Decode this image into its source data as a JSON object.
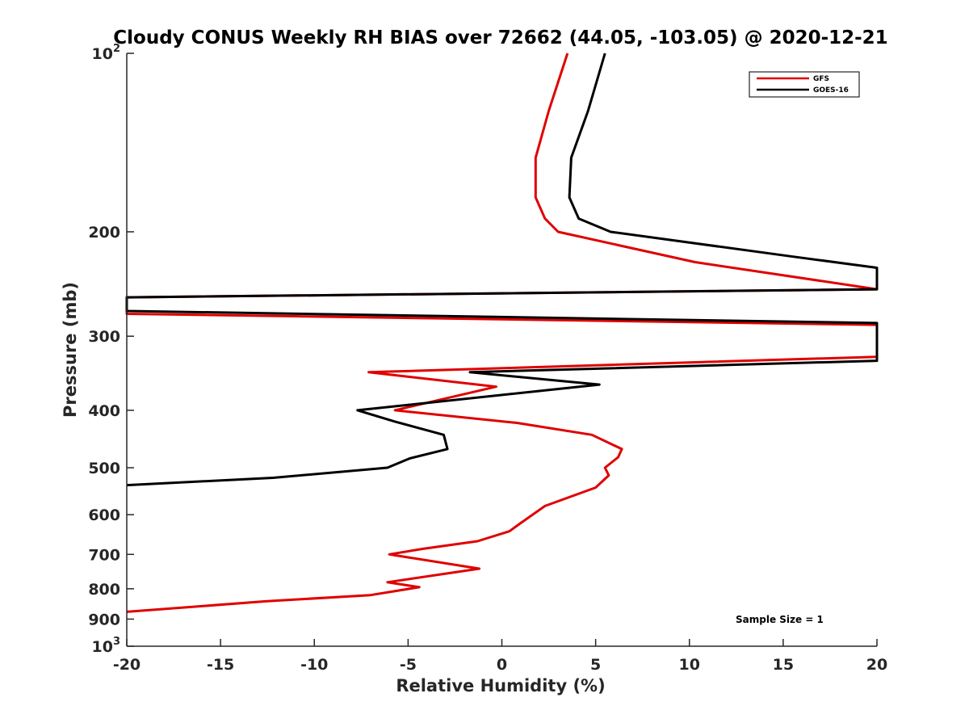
{
  "chart_data": {
    "type": "line",
    "title": "Cloudy CONUS Weekly RH BIAS over 72662 (44.05, -103.05) @ 2020-12-21",
    "xlabel": "Relative Humidity (%)",
    "ylabel": "Pressure (mb)",
    "xlim": [
      -20,
      20
    ],
    "ylim": [
      100,
      1000
    ],
    "y_scale": "log",
    "y_reversed": true,
    "grid": false,
    "legend_position": "top-right",
    "x_ticks": [
      {
        "value": -20,
        "label": "-20"
      },
      {
        "value": -15,
        "label": "-15"
      },
      {
        "value": -10,
        "label": "-10"
      },
      {
        "value": -5,
        "label": "-5"
      },
      {
        "value": 0,
        "label": "0"
      },
      {
        "value": 5,
        "label": "5"
      },
      {
        "value": 10,
        "label": "10"
      },
      {
        "value": 15,
        "label": "15"
      },
      {
        "value": 20,
        "label": "20"
      }
    ],
    "y_ticks": [
      {
        "value": 100,
        "label": "10",
        "sup": "2"
      },
      {
        "value": 200,
        "label": "200",
        "sup": ""
      },
      {
        "value": 300,
        "label": "300",
        "sup": ""
      },
      {
        "value": 400,
        "label": "400",
        "sup": ""
      },
      {
        "value": 500,
        "label": "500",
        "sup": ""
      },
      {
        "value": 600,
        "label": "600",
        "sup": ""
      },
      {
        "value": 700,
        "label": "700",
        "sup": ""
      },
      {
        "value": 800,
        "label": "800",
        "sup": ""
      },
      {
        "value": 900,
        "label": "900",
        "sup": ""
      },
      {
        "value": 1000,
        "label": "10",
        "sup": "3"
      }
    ],
    "series": [
      {
        "name": "GFS",
        "color": "#e00000",
        "points": [
          {
            "x": 3.5,
            "y": 100
          },
          {
            "x": 2.5,
            "y": 125
          },
          {
            "x": 1.8,
            "y": 150
          },
          {
            "x": 1.8,
            "y": 175
          },
          {
            "x": 2.3,
            "y": 190
          },
          {
            "x": 3.0,
            "y": 200
          },
          {
            "x": 10.3,
            "y": 225
          },
          {
            "x": 20.0,
            "y": 250
          },
          {
            "x": -20.0,
            "y": 258
          },
          {
            "x": -20.0,
            "y": 275
          },
          {
            "x": 20.0,
            "y": 287
          },
          {
            "x": 20.0,
            "y": 325
          },
          {
            "x": -7.1,
            "y": 345
          },
          {
            "x": -0.3,
            "y": 365
          },
          {
            "x": -5.7,
            "y": 400
          },
          {
            "x": 0.8,
            "y": 420
          },
          {
            "x": 4.8,
            "y": 440
          },
          {
            "x": 6.4,
            "y": 465
          },
          {
            "x": 6.2,
            "y": 480
          },
          {
            "x": 5.5,
            "y": 500
          },
          {
            "x": 5.7,
            "y": 515
          },
          {
            "x": 5.0,
            "y": 540
          },
          {
            "x": 2.3,
            "y": 580
          },
          {
            "x": 1.0,
            "y": 620
          },
          {
            "x": 0.4,
            "y": 640
          },
          {
            "x": -1.3,
            "y": 665
          },
          {
            "x": -4.2,
            "y": 685
          },
          {
            "x": -6.0,
            "y": 700
          },
          {
            "x": -1.2,
            "y": 740
          },
          {
            "x": -6.1,
            "y": 780
          },
          {
            "x": -4.4,
            "y": 795
          },
          {
            "x": -7.0,
            "y": 820
          },
          {
            "x": -12.6,
            "y": 840
          },
          {
            "x": -20.0,
            "y": 875
          }
        ]
      },
      {
        "name": "GOES-16",
        "color": "#000000",
        "points": [
          {
            "x": 5.5,
            "y": 100
          },
          {
            "x": 4.6,
            "y": 125
          },
          {
            "x": 3.7,
            "y": 150
          },
          {
            "x": 3.6,
            "y": 175
          },
          {
            "x": 4.1,
            "y": 190
          },
          {
            "x": 5.8,
            "y": 200
          },
          {
            "x": 15.4,
            "y": 220
          },
          {
            "x": 20.0,
            "y": 230
          },
          {
            "x": 20.0,
            "y": 250
          },
          {
            "x": -20.0,
            "y": 258
          },
          {
            "x": -20.0,
            "y": 272
          },
          {
            "x": 20.0,
            "y": 285
          },
          {
            "x": 20.0,
            "y": 330
          },
          {
            "x": -1.7,
            "y": 345
          },
          {
            "x": 5.2,
            "y": 362
          },
          {
            "x": -7.7,
            "y": 400
          },
          {
            "x": -5.7,
            "y": 418
          },
          {
            "x": -3.1,
            "y": 440
          },
          {
            "x": -2.9,
            "y": 465
          },
          {
            "x": -4.9,
            "y": 482
          },
          {
            "x": -6.1,
            "y": 500
          },
          {
            "x": -12.2,
            "y": 520
          },
          {
            "x": -20.0,
            "y": 535
          }
        ]
      }
    ],
    "legend": [
      {
        "name": "GFS",
        "color": "#e00000"
      },
      {
        "name": "GOES-16",
        "color": "#000000"
      }
    ],
    "annotation": "Sample Size = 1"
  }
}
